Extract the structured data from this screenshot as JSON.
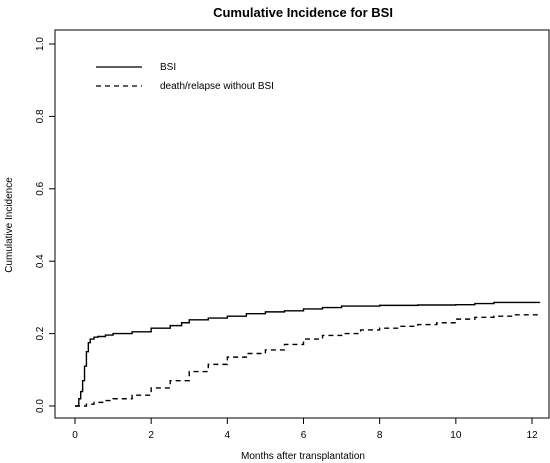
{
  "chart_data": {
    "type": "line",
    "title": "Cumulative Incidence for BSI",
    "xlabel": "Months after transplantation",
    "ylabel": "Cumulative Incidence",
    "xlim": [
      -0.3,
      12.4
    ],
    "ylim": [
      0,
      1.0
    ],
    "xticks": [
      0,
      2,
      4,
      6,
      8,
      10,
      12
    ],
    "yticks": [
      0.0,
      0.2,
      0.4,
      0.6,
      0.8,
      1.0
    ],
    "xtick_labels": [
      "0",
      "2",
      "4",
      "6",
      "8",
      "10",
      "12"
    ],
    "ytick_labels": [
      "0.0",
      "0.2",
      "0.4",
      "0.6",
      "0.8",
      "1.0"
    ],
    "grid": false,
    "legend_position": "top-left",
    "series": [
      {
        "name": "BSI",
        "style": "solid",
        "color": "#000000",
        "x": [
          0,
          0.1,
          0.15,
          0.2,
          0.25,
          0.3,
          0.35,
          0.4,
          0.5,
          0.6,
          0.8,
          1.0,
          1.5,
          2.0,
          2.5,
          2.8,
          3.0,
          3.5,
          4.0,
          4.5,
          5.0,
          5.5,
          6.0,
          6.5,
          7.0,
          8.0,
          9.0,
          10.0,
          10.5,
          11.0,
          12.2
        ],
        "y": [
          0.0,
          0.02,
          0.04,
          0.07,
          0.11,
          0.15,
          0.175,
          0.185,
          0.19,
          0.192,
          0.196,
          0.2,
          0.205,
          0.215,
          0.222,
          0.23,
          0.238,
          0.243,
          0.248,
          0.255,
          0.26,
          0.263,
          0.268,
          0.272,
          0.276,
          0.278,
          0.279,
          0.28,
          0.283,
          0.286,
          0.287
        ]
      },
      {
        "name": "death/relapse without BSI",
        "style": "dashed",
        "color": "#000000",
        "x": [
          0,
          0.3,
          0.5,
          0.8,
          1.0,
          1.5,
          2.0,
          2.5,
          3.0,
          3.5,
          4.0,
          4.5,
          5.0,
          5.5,
          6.0,
          6.5,
          7.0,
          7.5,
          8.0,
          8.5,
          9.0,
          9.5,
          10.0,
          10.5,
          11.0,
          11.5,
          12.2
        ],
        "y": [
          0.0,
          0.005,
          0.01,
          0.015,
          0.02,
          0.03,
          0.05,
          0.07,
          0.095,
          0.115,
          0.135,
          0.145,
          0.155,
          0.17,
          0.185,
          0.195,
          0.2,
          0.21,
          0.215,
          0.22,
          0.225,
          0.23,
          0.24,
          0.245,
          0.248,
          0.252,
          0.258
        ]
      }
    ]
  }
}
